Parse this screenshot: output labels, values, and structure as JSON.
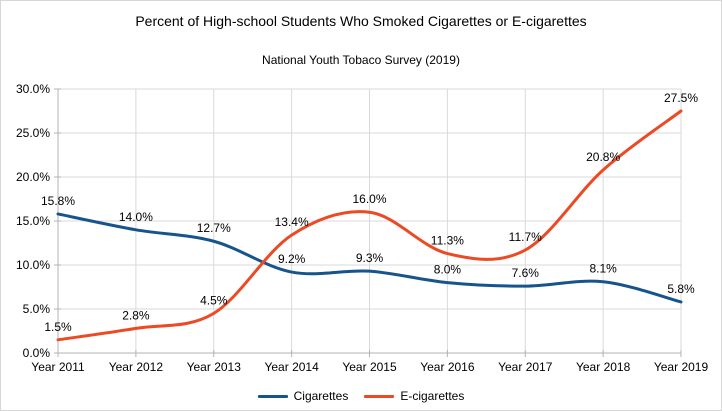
{
  "title": "Percent of High-school Students Who Smoked Cigarettes or E-cigarettes",
  "subtitle": "National Youth Tobaco Survey (2019)",
  "chart_data": {
    "type": "line",
    "smooth": true,
    "title": "Percent of High-school Students Who Smoked Cigarettes or E-cigarettes",
    "subtitle": "National Youth Tobaco Survey (2019)",
    "categories": [
      "Year 2011",
      "Year 2012",
      "Year 2013",
      "Year 2014",
      "Year 2015",
      "Year 2016",
      "Year 2017",
      "Year 2018",
      "Year 2019"
    ],
    "series": [
      {
        "name": "Cigarettes",
        "color": "#17548c",
        "values": [
          15.8,
          14.0,
          12.7,
          9.2,
          9.3,
          8.0,
          7.6,
          8.1,
          5.8
        ]
      },
      {
        "name": "E-cigarettes",
        "color": "#eb4a24",
        "values": [
          1.5,
          2.8,
          4.5,
          13.4,
          16.0,
          11.3,
          11.7,
          20.8,
          27.5
        ]
      }
    ],
    "data_labels": [
      [
        "15.8%",
        "14.0%",
        "12.7%",
        "9.2%",
        "9.3%",
        "8.0%",
        "7.6%",
        "8.1%",
        "5.8%"
      ],
      [
        "1.5%",
        "2.8%",
        "4.5%",
        "13.4%",
        "16.0%",
        "11.3%",
        "11.7%",
        "20.8%",
        "27.5%"
      ]
    ],
    "xlabel": "",
    "ylabel": "",
    "ylim": [
      0,
      30
    ],
    "ytick_step": 5,
    "ytick_labels": [
      "0.0%",
      "5.0%",
      "10.0%",
      "15.0%",
      "20.0%",
      "25.0%",
      "30.0%"
    ],
    "grid": true,
    "legend_position": "bottom",
    "colors": {
      "grid": "#d9d9d9",
      "axis": "#b3b3b3",
      "text": "#000000",
      "background": "#ffffff"
    }
  }
}
